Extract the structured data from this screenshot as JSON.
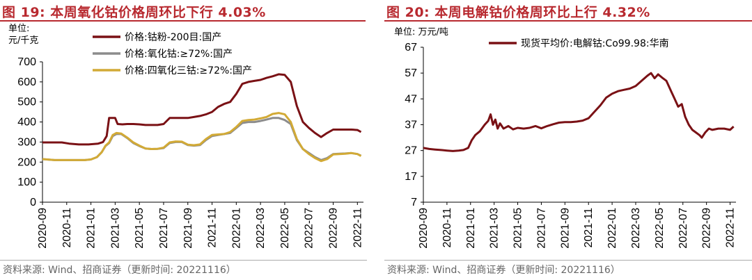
{
  "left": {
    "title": "图 19:  本周氧化钴价格周环比下行 4.03%",
    "unit_line1": "单位:",
    "unit_line2": "元/千克",
    "source": "资料来源:  Wind、招商证券（更新时间:  20221116）",
    "chart_data": {
      "type": "line",
      "ylim": [
        0,
        700
      ],
      "yticks": [
        "0",
        "100",
        "200",
        "300",
        "400",
        "500",
        "600",
        "700"
      ],
      "x_tick_labels": [
        "2020-09",
        "2020-11",
        "2021-01",
        "2021-03",
        "2021-05",
        "2021-07",
        "2021-09",
        "2021-11",
        "2022-01",
        "2022-03",
        "2022-05",
        "2022-07",
        "2022-09",
        "2022-11"
      ],
      "x_range": [
        0,
        26.5
      ],
      "series": [
        {
          "name": "价格:钴粉-200目:国产",
          "color": "#7a1115",
          "points": [
            [
              0,
              298
            ],
            [
              0.8,
              298
            ],
            [
              1.6,
              298
            ],
            [
              2.2,
              292
            ],
            [
              3.0,
              288
            ],
            [
              3.8,
              288
            ],
            [
              4.6,
              292
            ],
            [
              5.0,
              300
            ],
            [
              5.3,
              330
            ],
            [
              5.5,
              420
            ],
            [
              6.0,
              420
            ],
            [
              6.2,
              390
            ],
            [
              6.6,
              388
            ],
            [
              7.0,
              390
            ],
            [
              7.5,
              390
            ],
            [
              8.0,
              388
            ],
            [
              8.5,
              385
            ],
            [
              9.0,
              385
            ],
            [
              9.5,
              385
            ],
            [
              10.0,
              390
            ],
            [
              10.5,
              420
            ],
            [
              11.0,
              420
            ],
            [
              11.5,
              420
            ],
            [
              12.0,
              420
            ],
            [
              12.5,
              425
            ],
            [
              13.0,
              430
            ],
            [
              13.5,
              438
            ],
            [
              14.0,
              450
            ],
            [
              14.5,
              475
            ],
            [
              15.0,
              490
            ],
            [
              15.5,
              500
            ],
            [
              16.0,
              540
            ],
            [
              16.5,
              590
            ],
            [
              17.0,
              600
            ],
            [
              17.5,
              605
            ],
            [
              18.0,
              610
            ],
            [
              18.5,
              620
            ],
            [
              19.0,
              628
            ],
            [
              19.5,
              638
            ],
            [
              20.0,
              635
            ],
            [
              20.5,
              600
            ],
            [
              21.0,
              480
            ],
            [
              21.5,
              400
            ],
            [
              22.0,
              370
            ],
            [
              22.5,
              345
            ],
            [
              23.0,
              325
            ],
            [
              23.5,
              345
            ],
            [
              24.0,
              362
            ],
            [
              24.5,
              362
            ],
            [
              25.0,
              362
            ],
            [
              25.5,
              362
            ],
            [
              26.0,
              360
            ],
            [
              26.3,
              350
            ]
          ]
        },
        {
          "name": "价格:氧化钴:≥72%:国产",
          "color": "#8c8c8c",
          "points": [
            [
              0,
              215
            ],
            [
              1,
              210
            ],
            [
              2,
              210
            ],
            [
              3,
              210
            ],
            [
              3.5,
              210
            ],
            [
              4.0,
              213
            ],
            [
              4.5,
              225
            ],
            [
              4.9,
              250
            ],
            [
              5.2,
              280
            ],
            [
              5.5,
              295
            ],
            [
              5.8,
              330
            ],
            [
              6.1,
              340
            ],
            [
              6.5,
              340
            ],
            [
              7,
              320
            ],
            [
              7.5,
              295
            ],
            [
              8,
              280
            ],
            [
              8.5,
              268
            ],
            [
              9,
              265
            ],
            [
              9.5,
              266
            ],
            [
              10,
              270
            ],
            [
              10.5,
              295
            ],
            [
              11,
              300
            ],
            [
              11.5,
              300
            ],
            [
              12,
              285
            ],
            [
              12.5,
              282
            ],
            [
              13,
              285
            ],
            [
              13.5,
              310
            ],
            [
              14,
              330
            ],
            [
              14.5,
              335
            ],
            [
              15,
              340
            ],
            [
              15.5,
              345
            ],
            [
              16,
              370
            ],
            [
              16.5,
              395
            ],
            [
              17,
              400
            ],
            [
              17.5,
              400
            ],
            [
              18,
              405
            ],
            [
              18.5,
              412
            ],
            [
              19,
              420
            ],
            [
              19.5,
              420
            ],
            [
              20,
              410
            ],
            [
              20.5,
              390
            ],
            [
              21,
              310
            ],
            [
              21.5,
              265
            ],
            [
              22,
              245
            ],
            [
              22.5,
              225
            ],
            [
              23,
              210
            ],
            [
              23.5,
              220
            ],
            [
              24,
              240
            ],
            [
              24.5,
              242
            ],
            [
              25,
              243
            ],
            [
              25.5,
              245
            ],
            [
              26,
              240
            ],
            [
              26.3,
              232
            ]
          ]
        },
        {
          "name": "价格:四氧化三钴:≥72%:国产",
          "color": "#d2aa36",
          "points": [
            [
              0,
              215
            ],
            [
              1,
              210
            ],
            [
              2,
              210
            ],
            [
              3,
              210
            ],
            [
              3.5,
              210
            ],
            [
              4.0,
              213
            ],
            [
              4.5,
              225
            ],
            [
              4.9,
              250
            ],
            [
              5.2,
              282
            ],
            [
              5.5,
              298
            ],
            [
              5.8,
              335
            ],
            [
              6.1,
              345
            ],
            [
              6.5,
              342
            ],
            [
              7,
              322
            ],
            [
              7.5,
              298
            ],
            [
              8,
              282
            ],
            [
              8.5,
              268
            ],
            [
              9,
              265
            ],
            [
              9.5,
              266
            ],
            [
              10,
              272
            ],
            [
              10.5,
              298
            ],
            [
              11,
              303
            ],
            [
              11.5,
              302
            ],
            [
              12,
              287
            ],
            [
              12.5,
              284
            ],
            [
              13,
              288
            ],
            [
              13.5,
              315
            ],
            [
              14,
              335
            ],
            [
              14.5,
              338
            ],
            [
              15,
              340
            ],
            [
              15.5,
              350
            ],
            [
              16,
              375
            ],
            [
              16.5,
              405
            ],
            [
              17,
              410
            ],
            [
              17.5,
              412
            ],
            [
              18,
              418
            ],
            [
              18.5,
              425
            ],
            [
              19,
              440
            ],
            [
              19.5,
              445
            ],
            [
              20,
              438
            ],
            [
              20.5,
              400
            ],
            [
              21,
              315
            ],
            [
              21.5,
              265
            ],
            [
              22,
              240
            ],
            [
              22.5,
              220
            ],
            [
              23,
              205
            ],
            [
              23.5,
              215
            ],
            [
              24,
              238
            ],
            [
              24.5,
              240
            ],
            [
              25,
              242
            ],
            [
              25.5,
              245
            ],
            [
              26,
              240
            ],
            [
              26.3,
              230
            ]
          ]
        }
      ]
    }
  },
  "right": {
    "title": "图 20:  本周电解钴价格周环比上行 4.32%",
    "unit_line1": "单位: 万元/吨",
    "source": "资料来源:  Wind、招商证券（更新时间:  20221116）",
    "chart_data": {
      "type": "line",
      "ylim": [
        7,
        67
      ],
      "yticks": [
        "7",
        "17",
        "27",
        "37",
        "47",
        "57",
        "67"
      ],
      "x_tick_labels": [
        "2020-09",
        "2020-11",
        "2021-01",
        "2021-03",
        "2021-05",
        "2021-07",
        "2021-09",
        "2021-11",
        "2022-01",
        "2022-03",
        "2022-05",
        "2022-07",
        "2022-09",
        "2022-11"
      ],
      "x_range": [
        0,
        26.5
      ],
      "series": [
        {
          "name": "现货平均价:电解钴:Co99.98:华南",
          "color": "#7a1115",
          "points": [
            [
              0,
              28
            ],
            [
              0.5,
              27.6
            ],
            [
              1,
              27.4
            ],
            [
              1.5,
              27.2
            ],
            [
              2,
              27
            ],
            [
              2.5,
              26.8
            ],
            [
              3,
              27
            ],
            [
              3.4,
              27.2
            ],
            [
              3.8,
              28
            ],
            [
              4.1,
              31
            ],
            [
              4.4,
              33
            ],
            [
              4.8,
              34.5
            ],
            [
              5.2,
              37
            ],
            [
              5.5,
              38.5
            ],
            [
              5.7,
              41
            ],
            [
              5.9,
              37
            ],
            [
              6.1,
              39
            ],
            [
              6.3,
              35.5
            ],
            [
              6.5,
              37.5
            ],
            [
              6.8,
              35.5
            ],
            [
              7.2,
              36.5
            ],
            [
              7.6,
              35.2
            ],
            [
              8,
              35.8
            ],
            [
              8.5,
              35.5
            ],
            [
              9,
              35.8
            ],
            [
              9.5,
              36.5
            ],
            [
              10,
              35.6
            ],
            [
              10.5,
              36.5
            ],
            [
              11,
              37.2
            ],
            [
              11.5,
              37.8
            ],
            [
              12,
              38
            ],
            [
              12.5,
              38
            ],
            [
              13,
              38.2
            ],
            [
              13.5,
              38.6
            ],
            [
              14,
              39.5
            ],
            [
              14.5,
              42
            ],
            [
              15,
              44.5
            ],
            [
              15.5,
              47.5
            ],
            [
              16,
              49
            ],
            [
              16.5,
              50
            ],
            [
              17,
              50.5
            ],
            [
              17.5,
              51
            ],
            [
              18,
              52
            ],
            [
              18.5,
              54
            ],
            [
              19,
              56
            ],
            [
              19.3,
              57
            ],
            [
              19.6,
              55
            ],
            [
              19.9,
              56.5
            ],
            [
              20.3,
              55
            ],
            [
              20.6,
              54
            ],
            [
              21,
              50
            ],
            [
              21.3,
              47
            ],
            [
              21.6,
              44
            ],
            [
              21.9,
              45
            ],
            [
              22.2,
              40
            ],
            [
              22.5,
              37
            ],
            [
              22.8,
              35
            ],
            [
              23.1,
              34
            ],
            [
              23.4,
              33
            ],
            [
              23.6,
              32
            ],
            [
              23.9,
              34
            ],
            [
              24.2,
              35.5
            ],
            [
              24.5,
              35
            ],
            [
              25,
              35.5
            ],
            [
              25.5,
              35.5
            ],
            [
              26,
              35
            ],
            [
              26.3,
              36.3
            ]
          ]
        }
      ]
    }
  }
}
